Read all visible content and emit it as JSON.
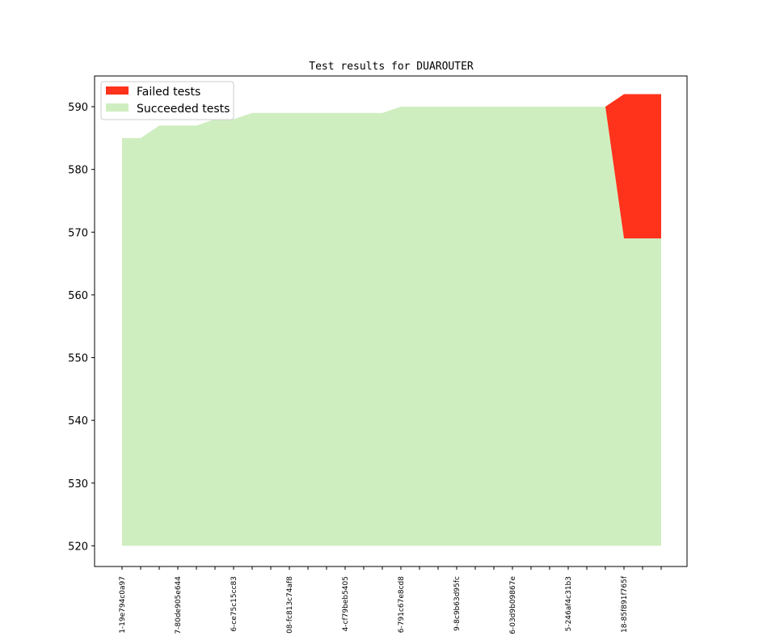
{
  "chart_data": {
    "type": "area",
    "title": "Test results for DUAROUTER",
    "xlabel": "",
    "ylabel": "",
    "ylim": [
      516.7,
      594.9
    ],
    "yticks": [
      520,
      530,
      540,
      550,
      560,
      570,
      580,
      590
    ],
    "legend_position": "top-left",
    "x": [
      0,
      1,
      2,
      3,
      4,
      5,
      6,
      7,
      8,
      9,
      10,
      11,
      12,
      13,
      14,
      15,
      16,
      17,
      18,
      19,
      20,
      21,
      22,
      23,
      24,
      25,
      26,
      27,
      28,
      29
    ],
    "xtick_labels": [
      {
        "index": 0,
        "text": "1-19e794c0a97"
      },
      {
        "index": 3,
        "text": "7-80de905e644"
      },
      {
        "index": 6,
        "text": "6-ce75c15cc83"
      },
      {
        "index": 9,
        "text": "08-fc813c74af8"
      },
      {
        "index": 12,
        "text": "4-cf79beb5405"
      },
      {
        "index": 15,
        "text": "6-791c67e8cd8"
      },
      {
        "index": 18,
        "text": "9-8c9b63d95fc"
      },
      {
        "index": 21,
        "text": "6-03d9b09867e"
      },
      {
        "index": 24,
        "text": "5-246af4c31b3"
      },
      {
        "index": 27,
        "text": "18-85f891f765f"
      }
    ],
    "series": [
      {
        "name": "Succeeded tests",
        "color": "#cfeec0",
        "values": [
          585,
          585,
          587,
          587,
          587,
          588,
          588,
          589,
          589,
          589,
          589,
          589,
          589,
          589,
          589,
          590,
          590,
          590,
          590,
          590,
          590,
          590,
          590,
          590,
          590,
          590,
          590,
          569,
          569,
          569
        ]
      },
      {
        "name": "Failed tests",
        "color": "#ff321b",
        "values": [
          0,
          0,
          0,
          0,
          0,
          0,
          0,
          0,
          0,
          0,
          0,
          0,
          0,
          0,
          0,
          0,
          0,
          0,
          0,
          0,
          0,
          0,
          0,
          0,
          0,
          0,
          0,
          23,
          23,
          23
        ]
      }
    ],
    "baseline": 520
  }
}
